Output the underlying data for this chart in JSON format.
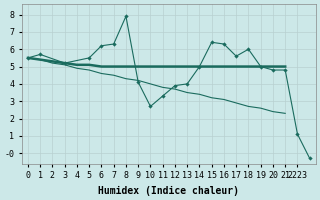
{
  "xlabel": "Humidex (Indice chaleur)",
  "background_color": "#cce8e8",
  "line_color": "#1a6b5e",
  "x_values": [
    0,
    1,
    2,
    3,
    4,
    5,
    6,
    7,
    8,
    9,
    10,
    11,
    12,
    13,
    14,
    15,
    16,
    17,
    18,
    19,
    20,
    21,
    22,
    23
  ],
  "line_wavy": [
    5.5,
    5.7,
    null,
    5.2,
    null,
    5.5,
    6.2,
    6.3,
    7.9,
    4.1,
    2.7,
    3.3,
    3.9,
    4.0,
    5.0,
    6.4,
    6.3,
    5.6,
    6.0,
    5.0,
    4.8,
    4.8,
    1.1,
    -0.3
  ],
  "line_flat": [
    5.5,
    5.4,
    5.3,
    5.2,
    5.1,
    5.1,
    5.0,
    5.0,
    5.0,
    5.0,
    5.0,
    5.0,
    5.0,
    5.0,
    5.0,
    5.0,
    5.0,
    5.0,
    5.0,
    5.0,
    5.0,
    5.0,
    null,
    null
  ],
  "line_diag": [
    5.5,
    5.4,
    5.2,
    5.1,
    4.9,
    4.8,
    4.6,
    4.5,
    4.3,
    4.2,
    4.0,
    3.8,
    3.7,
    3.5,
    3.4,
    3.2,
    3.1,
    2.9,
    2.7,
    2.6,
    2.4,
    2.3,
    null,
    null
  ],
  "ylim": [
    -0.6,
    8.6
  ],
  "xlim": [
    -0.5,
    23.5
  ],
  "yticks": [
    0,
    1,
    2,
    3,
    4,
    5,
    6,
    7,
    8
  ],
  "ytick_labels": [
    "-0",
    "1",
    "2",
    "3",
    "4",
    "5",
    "6",
    "7",
    "8"
  ],
  "xtick_positions": [
    0,
    1,
    2,
    3,
    4,
    5,
    6,
    7,
    8,
    9,
    10,
    11,
    12,
    13,
    14,
    15,
    16,
    17,
    18,
    19,
    20,
    21,
    22
  ],
  "xtick_labels": [
    "0",
    "1",
    "2",
    "3",
    "4",
    "5",
    "6",
    "7",
    "8",
    "9",
    "10",
    "11",
    "12",
    "13",
    "14",
    "15",
    "16",
    "17",
    "18",
    "19",
    "20",
    "21",
    "2223"
  ]
}
